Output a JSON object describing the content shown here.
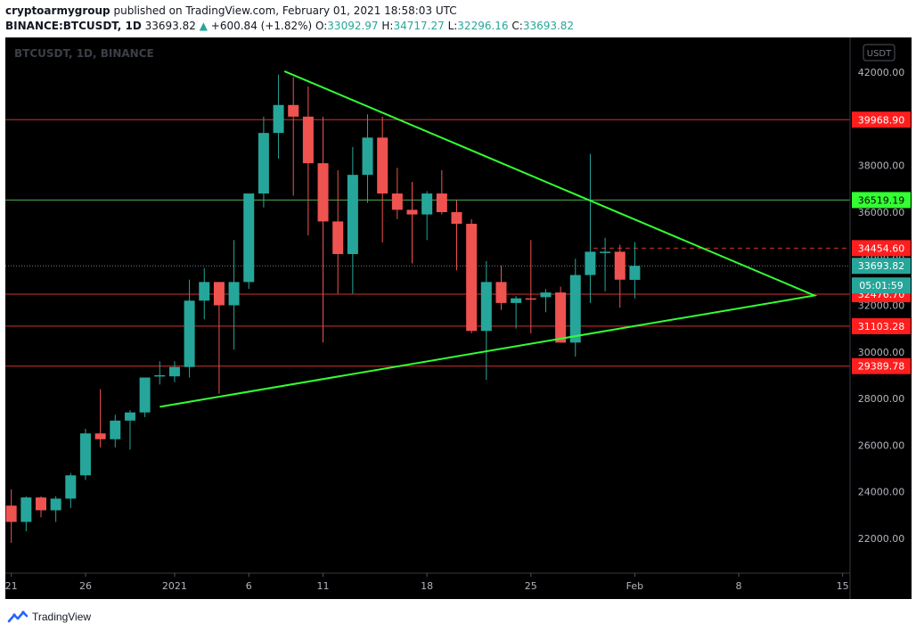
{
  "header": {
    "author": "cryptoarmygroup",
    "published_text": "published on TradingView.com, February 01, 2021 18:58:03 UTC",
    "symbol": "BINANCE:BTCUSDT, 1D",
    "last": "33693.82",
    "change_arrow": "▲",
    "change": "+600.84 (+1.82%)",
    "o_label": "O:",
    "o": "33092.97",
    "h_label": "H:",
    "h": "34717.27",
    "l_label": "L:",
    "l": "32296.16",
    "c_label": "C:",
    "c": "33693.82"
  },
  "watermark": "BTCUSDT, 1D, BINANCE",
  "currency_badge": "USDT",
  "footer": {
    "brand": "TradingView"
  },
  "colors": {
    "background": "#000000",
    "up": "#26a69a",
    "down": "#ef5350",
    "red_line": "#d32f2f",
    "green_line": "#4caf50",
    "trend": "#33ff33",
    "axis_text": "#b2b5be"
  },
  "chart_data": {
    "type": "candlestick",
    "ylim": [
      20500,
      43500
    ],
    "y_ticks": [
      22000,
      24000,
      26000,
      28000,
      30000,
      32000,
      34000,
      36000,
      38000,
      40000,
      42000
    ],
    "y_tick_labels": [
      "22000.00",
      "24000.00",
      "26000.00",
      "28000.00",
      "30000.00",
      "32000.00",
      "34000.00",
      "36000.00",
      "38000.00",
      "40000.00",
      "42000.00"
    ],
    "x_ticks": [
      {
        "day": 0,
        "label": "21"
      },
      {
        "day": 5,
        "label": "26"
      },
      {
        "day": 11,
        "label": "2021"
      },
      {
        "day": 16,
        "label": "6"
      },
      {
        "day": 21,
        "label": "11"
      },
      {
        "day": 28,
        "label": "18"
      },
      {
        "day": 35,
        "label": "25"
      },
      {
        "day": 42,
        "label": "Feb"
      },
      {
        "day": 49,
        "label": "8"
      },
      {
        "day": 56,
        "label": "15"
      }
    ],
    "x_range": [
      -0.4,
      56.5
    ],
    "candles": [
      {
        "day": 0,
        "o": 23400,
        "h": 24100,
        "l": 21800,
        "c": 22700
      },
      {
        "day": 1,
        "o": 22700,
        "h": 23800,
        "l": 22300,
        "c": 23750
      },
      {
        "day": 2,
        "o": 23750,
        "h": 23800,
        "l": 22900,
        "c": 23200
      },
      {
        "day": 3,
        "o": 23200,
        "h": 23800,
        "l": 22700,
        "c": 23700
      },
      {
        "day": 4,
        "o": 23700,
        "h": 24800,
        "l": 23300,
        "c": 24700
      },
      {
        "day": 5,
        "o": 24700,
        "h": 26700,
        "l": 24500,
        "c": 26500
      },
      {
        "day": 6,
        "o": 26500,
        "h": 28400,
        "l": 25900,
        "c": 26250
      },
      {
        "day": 7,
        "o": 26250,
        "h": 27300,
        "l": 25900,
        "c": 27050
      },
      {
        "day": 8,
        "o": 27050,
        "h": 27500,
        "l": 25800,
        "c": 27400
      },
      {
        "day": 9,
        "o": 27400,
        "h": 28900,
        "l": 27200,
        "c": 28900
      },
      {
        "day": 10,
        "o": 28950,
        "h": 29600,
        "l": 28600,
        "c": 29000
      },
      {
        "day": 11,
        "o": 28950,
        "h": 29600,
        "l": 28700,
        "c": 29350
      },
      {
        "day": 12,
        "o": 29350,
        "h": 33100,
        "l": 28900,
        "c": 32200
      },
      {
        "day": 13,
        "o": 32200,
        "h": 33600,
        "l": 31400,
        "c": 33000
      },
      {
        "day": 14,
        "o": 33000,
        "h": 33000,
        "l": 28200,
        "c": 32000
      },
      {
        "day": 15,
        "o": 32000,
        "h": 34800,
        "l": 30100,
        "c": 33000
      },
      {
        "day": 16,
        "o": 33000,
        "h": 36600,
        "l": 32700,
        "c": 36800
      },
      {
        "day": 17,
        "o": 36800,
        "h": 40100,
        "l": 36200,
        "c": 39400
      },
      {
        "day": 18,
        "o": 39400,
        "h": 41900,
        "l": 38300,
        "c": 40600
      },
      {
        "day": 19,
        "o": 40600,
        "h": 41800,
        "l": 36700,
        "c": 40100
      },
      {
        "day": 20,
        "o": 40100,
        "h": 41400,
        "l": 35000,
        "c": 38100
      },
      {
        "day": 21,
        "o": 38100,
        "h": 40100,
        "l": 30400,
        "c": 35600
      },
      {
        "day": 22,
        "o": 35600,
        "h": 37800,
        "l": 32500,
        "c": 34200
      },
      {
        "day": 23,
        "o": 34200,
        "h": 38800,
        "l": 32500,
        "c": 37600
      },
      {
        "day": 24,
        "o": 37600,
        "h": 40200,
        "l": 36400,
        "c": 39200
      },
      {
        "day": 25,
        "o": 39200,
        "h": 40100,
        "l": 34700,
        "c": 36800
      },
      {
        "day": 26,
        "o": 36800,
        "h": 37900,
        "l": 35700,
        "c": 36100
      },
      {
        "day": 27,
        "o": 36100,
        "h": 37300,
        "l": 33800,
        "c": 35900
      },
      {
        "day": 28,
        "o": 35900,
        "h": 36900,
        "l": 34800,
        "c": 36800
      },
      {
        "day": 29,
        "o": 36800,
        "h": 37800,
        "l": 35900,
        "c": 36000
      },
      {
        "day": 30,
        "o": 36000,
        "h": 36500,
        "l": 33500,
        "c": 35500
      },
      {
        "day": 31,
        "o": 35500,
        "h": 35700,
        "l": 30800,
        "c": 30900
      },
      {
        "day": 32,
        "o": 30900,
        "h": 33900,
        "l": 28800,
        "c": 33000
      },
      {
        "day": 33,
        "o": 33000,
        "h": 33700,
        "l": 31800,
        "c": 32100
      },
      {
        "day": 34,
        "o": 32100,
        "h": 32400,
        "l": 31000,
        "c": 32300
      },
      {
        "day": 35,
        "o": 32300,
        "h": 34800,
        "l": 30800,
        "c": 32250
      },
      {
        "day": 36,
        "o": 32350,
        "h": 32700,
        "l": 31700,
        "c": 32550
      },
      {
        "day": 37,
        "o": 32550,
        "h": 32800,
        "l": 30400,
        "c": 30400
      },
      {
        "day": 38,
        "o": 30400,
        "h": 34000,
        "l": 29800,
        "c": 33300
      },
      {
        "day": 39,
        "o": 33300,
        "h": 38500,
        "l": 32100,
        "c": 34300
      },
      {
        "day": 40,
        "o": 34300,
        "h": 34900,
        "l": 32600,
        "c": 34300
      },
      {
        "day": 41,
        "o": 34300,
        "h": 34600,
        "l": 31900,
        "c": 33100
      },
      {
        "day": 42,
        "o": 33093,
        "h": 34717,
        "l": 32296,
        "c": 33694
      }
    ],
    "levels": [
      {
        "value": 39968.9,
        "label": "39968.90",
        "kind": "red"
      },
      {
        "value": 36519.19,
        "label": "36519.19",
        "kind": "green"
      },
      {
        "value": 34454.6,
        "label": "34454.60",
        "kind": "red-dashed"
      },
      {
        "value": 32476.7,
        "label": "32476.70",
        "kind": "red"
      },
      {
        "value": 31103.28,
        "label": "31103.28",
        "kind": "red"
      },
      {
        "value": 29389.78,
        "label": "29389.78",
        "kind": "red"
      }
    ],
    "last_price": {
      "value": 33693.82,
      "label": "33693.82",
      "countdown": "05:01:59"
    },
    "triangle": [
      {
        "day": 18.4,
        "price": 42050
      },
      {
        "day": 54.1,
        "price": 32420
      },
      {
        "day": 10.0,
        "price": 27640
      }
    ]
  }
}
